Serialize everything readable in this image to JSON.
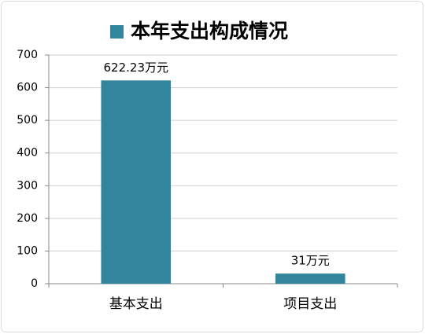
{
  "chart_data": {
    "type": "bar",
    "categories": [
      "基本支出",
      "项目支出"
    ],
    "series": [
      {
        "name": "本年支出构成情况",
        "color": "#31859c",
        "values": [
          622.23,
          31
        ],
        "value_labels": [
          "622.23万元",
          "31万元"
        ]
      }
    ],
    "ylim": [
      0,
      700
    ],
    "yticks": [
      0,
      100,
      200,
      300,
      400,
      500,
      600,
      700
    ],
    "grid": true,
    "legend": "top"
  }
}
